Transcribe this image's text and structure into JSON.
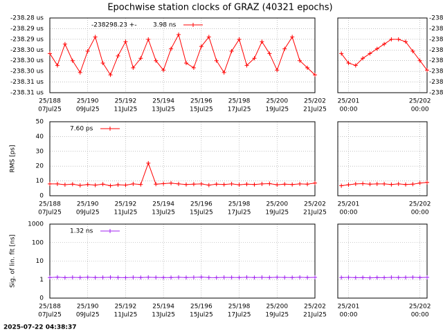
{
  "title": "Epochwise station clocks of GRAZ (40321 epochs)",
  "timestamp": "2025-07-22 04:38:37",
  "chart_data": [
    {
      "type": "line",
      "legend_label": "3.98 ns",
      "series": [
        {
          "name": "-238298.23 +-",
          "color": "#ff0000",
          "x": [
            188,
            188.4,
            188.8,
            189.2,
            189.6,
            190,
            190.4,
            190.8,
            191.2,
            191.6,
            192,
            192.4,
            192.8,
            193.2,
            193.6,
            194,
            194.4,
            194.8,
            195.2,
            195.6,
            196,
            196.4,
            196.8,
            197.2,
            197.6,
            198,
            198.4,
            198.8,
            199.2,
            199.6,
            200,
            200.4,
            200.8,
            201.2,
            201.6,
            202
          ],
          "values": [
            -238.297,
            -238.302,
            -238.293,
            -238.3,
            -238.305,
            -238.296,
            -238.29,
            -238.301,
            -238.306,
            -238.298,
            -238.292,
            -238.303,
            -238.299,
            -238.291,
            -238.3,
            -238.304,
            -238.295,
            -238.289,
            -238.301,
            -238.303,
            -238.294,
            -238.29,
            -238.3,
            -238.305,
            -238.296,
            -238.291,
            -238.302,
            -238.299,
            -238.292,
            -238.297,
            -238.304,
            -238.295,
            -238.29,
            -238.3,
            -238.303,
            -238.306
          ]
        }
      ],
      "xlim": [
        188,
        202
      ],
      "xticks": [
        {
          "value": 188,
          "label": "25/188"
        },
        {
          "value": 190,
          "label": "25/190"
        },
        {
          "value": 192,
          "label": "25/192"
        },
        {
          "value": 194,
          "label": "25/194"
        },
        {
          "value": 196,
          "label": "25/196"
        },
        {
          "value": 198,
          "label": "25/198"
        },
        {
          "value": 200,
          "label": "25/200"
        },
        {
          "value": 202,
          "label": "25/202"
        }
      ],
      "xtick_dates": [
        "07Jul25",
        "09Jul25",
        "11Jul25",
        "13Jul25",
        "15Jul25",
        "17Jul25",
        "19Jul25",
        "21Jul25"
      ],
      "ylim": [
        -238.3135,
        -238.282
      ],
      "yticks": [
        {
          "value": -238.282,
          "label": "-238.28 us"
        },
        {
          "value": -238.2865,
          "label": "-238.29 us"
        },
        {
          "value": -238.291,
          "label": "-238.29 us"
        },
        {
          "value": -238.2955,
          "label": "-238.30 us"
        },
        {
          "value": -238.3,
          "label": "-238.30 us"
        },
        {
          "value": -238.3045,
          "label": "-238.30 us"
        },
        {
          "value": -238.309,
          "label": "-238.31 us"
        },
        {
          "value": -238.3135,
          "label": "-238.31 us"
        }
      ],
      "grid": true
    },
    {
      "type": "line",
      "series": [
        {
          "color": "#ff0000",
          "x": [
            200.9,
            201,
            201.1,
            201.2,
            201.3,
            201.4,
            201.5,
            201.6,
            201.7,
            201.8,
            201.9,
            202,
            202.1
          ],
          "values": [
            -238.297,
            -238.301,
            -238.302,
            -238.299,
            -238.297,
            -238.295,
            -238.293,
            -238.291,
            -238.291,
            -238.292,
            -238.296,
            -238.3,
            -238.304
          ]
        }
      ],
      "xlim": [
        200.85,
        202.1
      ],
      "xticks": [
        {
          "value": 201,
          "label": "25/201"
        },
        {
          "value": 202,
          "label": "25/202"
        }
      ],
      "xtick_dates": [
        "00:00",
        "00:00"
      ],
      "ylim": [
        -238.3135,
        -238.282
      ],
      "yticks": [
        {
          "value": -238.282,
          "label": "-238"
        },
        {
          "value": -238.2865,
          "label": "-238"
        },
        {
          "value": -238.291,
          "label": "-238"
        },
        {
          "value": -238.2955,
          "label": "-238"
        },
        {
          "value": -238.3,
          "label": "-238"
        },
        {
          "value": -238.3045,
          "label": "-238"
        },
        {
          "value": -238.309,
          "label": "-238"
        },
        {
          "value": -238.3135,
          "label": "-238"
        }
      ],
      "ytick_side": "right",
      "grid": true
    },
    {
      "type": "line",
      "ylabel": "RMS [ps]",
      "series": [
        {
          "name": "7.60 ps",
          "color": "#ff0000",
          "x": [
            188,
            188.4,
            188.8,
            189.2,
            189.6,
            190,
            190.4,
            190.8,
            191.2,
            191.6,
            192,
            192.4,
            192.8,
            193.2,
            193.6,
            194,
            194.4,
            194.8,
            195.2,
            195.6,
            196,
            196.4,
            196.8,
            197.2,
            197.6,
            198,
            198.4,
            198.8,
            199.2,
            199.6,
            200,
            200.4,
            200.8,
            201.2,
            201.6,
            202
          ],
          "values": [
            8,
            8,
            7.5,
            7.8,
            7,
            7.6,
            7.2,
            7.8,
            6.8,
            7.4,
            7.2,
            8,
            7.6,
            22,
            7.8,
            8.2,
            8.5,
            8,
            7.6,
            7.8,
            8,
            7.2,
            7.8,
            7.6,
            8,
            7.4,
            7.8,
            7.6,
            8,
            8.2,
            7.4,
            7.8,
            7.6,
            8,
            7.8,
            8.6
          ]
        }
      ],
      "xlim": [
        188,
        202
      ],
      "xticks": [
        {
          "value": 188,
          "label": "25/188"
        },
        {
          "value": 190,
          "label": "25/190"
        },
        {
          "value": 192,
          "label": "25/192"
        },
        {
          "value": 194,
          "label": "25/194"
        },
        {
          "value": 196,
          "label": "25/196"
        },
        {
          "value": 198,
          "label": "25/198"
        },
        {
          "value": 200,
          "label": "25/200"
        },
        {
          "value": 202,
          "label": "25/202"
        }
      ],
      "xtick_dates": [
        "07Jul25",
        "09Jul25",
        "11Jul25",
        "13Jul25",
        "15Jul25",
        "17Jul25",
        "19Jul25",
        "21Jul25"
      ],
      "ylim": [
        0,
        50
      ],
      "yticks": [
        0,
        10,
        20,
        30,
        40,
        50
      ],
      "grid": true
    },
    {
      "type": "line",
      "series": [
        {
          "color": "#ff0000",
          "x": [
            200.9,
            201,
            201.1,
            201.2,
            201.3,
            201.4,
            201.5,
            201.6,
            201.7,
            201.8,
            201.9,
            202,
            202.1
          ],
          "values": [
            6.8,
            7.4,
            8,
            8.2,
            7.8,
            8,
            8,
            7.6,
            8,
            7.6,
            7.8,
            8.6,
            9
          ]
        }
      ],
      "xlim": [
        200.85,
        202.1
      ],
      "xticks": [
        {
          "value": 201,
          "label": "25/201"
        },
        {
          "value": 202,
          "label": "25/202"
        }
      ],
      "xtick_dates": [
        "00:00",
        "00:00"
      ],
      "ylim": [
        0,
        50
      ],
      "yticks": [
        0,
        10,
        20,
        30,
        40,
        50
      ],
      "ytick_side": "none",
      "grid": true
    },
    {
      "type": "line",
      "ylabel": "Sig. of lin. fit [ns]",
      "log": true,
      "series": [
        {
          "name": "1.32 ns",
          "color": "#a020f0",
          "x": [
            188,
            188.4,
            188.8,
            189.2,
            189.6,
            190,
            190.4,
            190.8,
            191.2,
            191.6,
            192,
            192.4,
            192.8,
            193.2,
            193.6,
            194,
            194.4,
            194.8,
            195.2,
            195.6,
            196,
            196.4,
            196.8,
            197.2,
            197.6,
            198,
            198.4,
            198.8,
            199.2,
            199.6,
            200,
            200.4,
            200.8,
            201.2,
            201.6,
            202
          ],
          "values": [
            1.3,
            1.35,
            1.28,
            1.32,
            1.3,
            1.34,
            1.29,
            1.31,
            1.33,
            1.3,
            1.28,
            1.32,
            1.3,
            1.34,
            1.31,
            1.3,
            1.29,
            1.33,
            1.3,
            1.32,
            1.36,
            1.3,
            1.28,
            1.32,
            1.31,
            1.3,
            1.33,
            1.29,
            1.32,
            1.3,
            1.34,
            1.31,
            1.3,
            1.33,
            1.3,
            1.32
          ]
        }
      ],
      "xlim": [
        188,
        202
      ],
      "xticks": [
        {
          "value": 188,
          "label": "25/188"
        },
        {
          "value": 190,
          "label": "25/190"
        },
        {
          "value": 192,
          "label": "25/192"
        },
        {
          "value": 194,
          "label": "25/194"
        },
        {
          "value": 196,
          "label": "25/196"
        },
        {
          "value": 198,
          "label": "25/198"
        },
        {
          "value": 200,
          "label": "25/200"
        },
        {
          "value": 202,
          "label": "25/202"
        }
      ],
      "xtick_dates": [
        "07Jul25",
        "09Jul25",
        "11Jul25",
        "13Jul25",
        "15Jul25",
        "17Jul25",
        "19Jul25",
        "21Jul25"
      ],
      "ylim": [
        0.1,
        1000
      ],
      "yticks": [
        {
          "value": 0.1,
          "label": "0"
        },
        1,
        10,
        100,
        1000
      ],
      "grid": true
    },
    {
      "type": "line",
      "log": true,
      "series": [
        {
          "color": "#a020f0",
          "x": [
            200.9,
            201,
            201.1,
            201.2,
            201.3,
            201.4,
            201.5,
            201.6,
            201.7,
            201.8,
            201.9,
            202,
            202.1
          ],
          "values": [
            1.3,
            1.32,
            1.28,
            1.3,
            1.25,
            1.3,
            1.28,
            1.32,
            1.3,
            1.31,
            1.33,
            1.3,
            1.32
          ]
        }
      ],
      "xlim": [
        200.85,
        202.1
      ],
      "xticks": [
        {
          "value": 201,
          "label": "25/201"
        },
        {
          "value": 202,
          "label": "25/202"
        }
      ],
      "xtick_dates": [
        "00:00",
        "00:00"
      ],
      "ylim": [
        0.1,
        1000
      ],
      "yticks": [
        {
          "value": 0.1,
          "label": "0"
        },
        1,
        10,
        100,
        1000
      ],
      "ytick_side": "none",
      "grid": true
    }
  ]
}
